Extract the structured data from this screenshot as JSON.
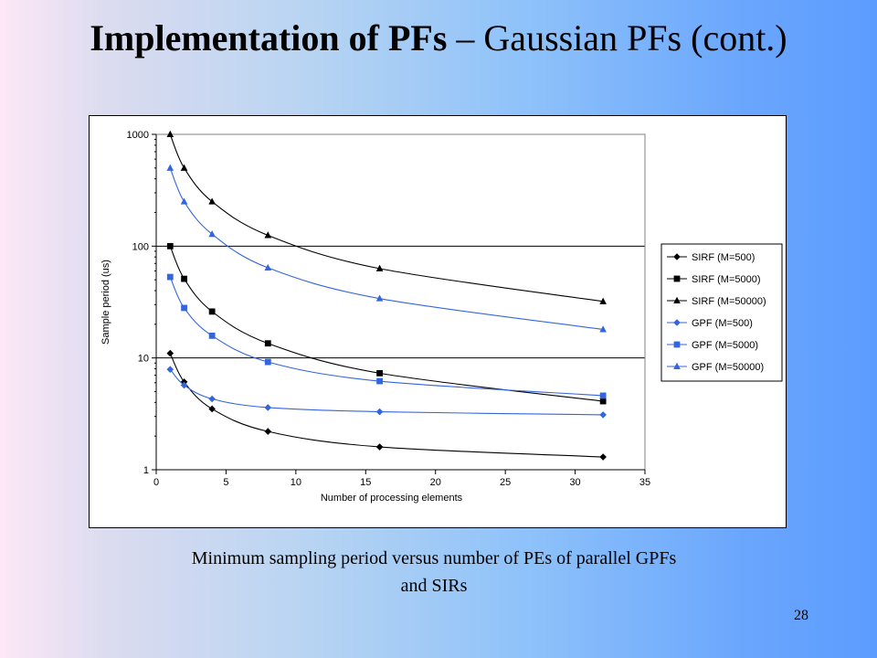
{
  "slide": {
    "title_bold": "Implementation of PFs",
    "title_rest": " – Gaussian PFs (cont.)",
    "caption_line1": "Minimum sampling period versus number of PEs of parallel GPFs",
    "caption_line2": "and SIRs",
    "page_number": "28"
  },
  "chart_data": {
    "type": "line",
    "title": "",
    "xlabel": "Number of processing elements",
    "ylabel": "Sample period (us)",
    "xlim": [
      0,
      35
    ],
    "ylim": [
      1,
      1000
    ],
    "yscale": "log",
    "x_ticks": [
      0,
      5,
      10,
      15,
      20,
      25,
      30,
      35
    ],
    "y_ticks": [
      1,
      10,
      100,
      1000
    ],
    "grid": "horizontal major lines",
    "legend_position": "right",
    "x": [
      1,
      2,
      4,
      8,
      16,
      32
    ],
    "series": [
      {
        "name": "SIRF (M=500)",
        "color": "#000000",
        "marker": "diamond",
        "values": [
          11,
          6.1,
          3.5,
          2.2,
          1.6,
          1.3
        ]
      },
      {
        "name": "SIRF (M=5000)",
        "color": "#000000",
        "marker": "square",
        "values": [
          100,
          51,
          26,
          13.5,
          7.3,
          4.1
        ]
      },
      {
        "name": "SIRF (M=50000)",
        "color": "#000000",
        "marker": "triangle",
        "values": [
          1000,
          500,
          250,
          125,
          63,
          32
        ]
      },
      {
        "name": "GPF (M=500)",
        "color": "#3366dd",
        "marker": "diamond",
        "values": [
          7.9,
          5.7,
          4.3,
          3.6,
          3.3,
          3.1
        ]
      },
      {
        "name": "GPF (M=5000)",
        "color": "#3366dd",
        "marker": "square",
        "values": [
          53,
          28,
          15.8,
          9.2,
          6.2,
          4.6
        ]
      },
      {
        "name": "GPF (M=50000)",
        "color": "#3366dd",
        "marker": "triangle",
        "values": [
          500,
          250,
          128,
          64,
          34,
          18
        ]
      }
    ]
  }
}
